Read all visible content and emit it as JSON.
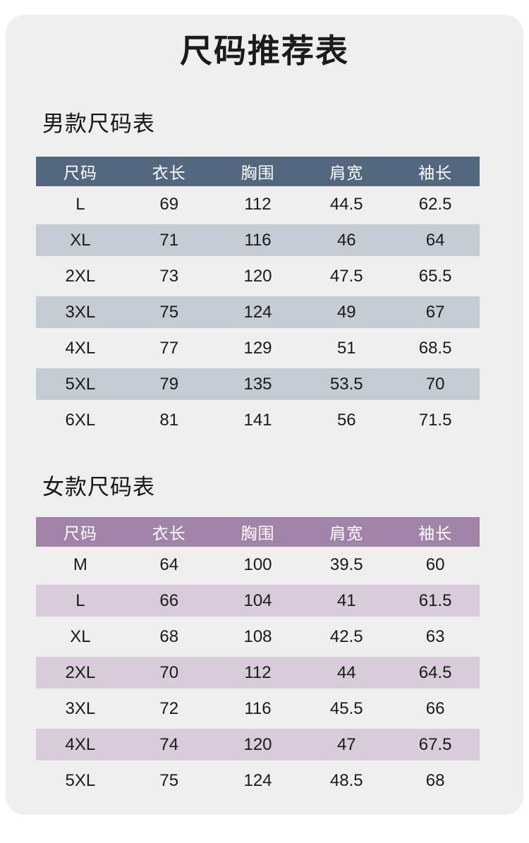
{
  "page": {
    "title": "尺码推荐表",
    "card_bg": "#efefef"
  },
  "men": {
    "section_title": "男款尺码表",
    "theme": {
      "header_bg": "#53687f",
      "header_text": "#ffffff",
      "alt_row_bg": "#c5ccd4"
    },
    "columns": [
      "尺码",
      "衣长",
      "胸围",
      "肩宽",
      "袖长"
    ],
    "rows": [
      [
        "L",
        "69",
        "112",
        "44.5",
        "62.5"
      ],
      [
        "XL",
        "71",
        "116",
        "46",
        "64"
      ],
      [
        "2XL",
        "73",
        "120",
        "47.5",
        "65.5"
      ],
      [
        "3XL",
        "75",
        "124",
        "49",
        "67"
      ],
      [
        "4XL",
        "77",
        "129",
        "51",
        "68.5"
      ],
      [
        "5XL",
        "79",
        "135",
        "53.5",
        "70"
      ],
      [
        "6XL",
        "81",
        "141",
        "56",
        "71.5"
      ]
    ]
  },
  "women": {
    "section_title": "女款尺码表",
    "theme": {
      "header_bg": "#a184a8",
      "header_text": "#ffffff",
      "alt_row_bg": "#d8cbda"
    },
    "columns": [
      "尺码",
      "衣长",
      "胸围",
      "肩宽",
      "袖长"
    ],
    "rows": [
      [
        "M",
        "64",
        "100",
        "39.5",
        "60"
      ],
      [
        "L",
        "66",
        "104",
        "41",
        "61.5"
      ],
      [
        "XL",
        "68",
        "108",
        "42.5",
        "63"
      ],
      [
        "2XL",
        "70",
        "112",
        "44",
        "64.5"
      ],
      [
        "3XL",
        "72",
        "116",
        "45.5",
        "66"
      ],
      [
        "4XL",
        "74",
        "120",
        "47",
        "67.5"
      ],
      [
        "5XL",
        "75",
        "124",
        "48.5",
        "68"
      ]
    ]
  }
}
